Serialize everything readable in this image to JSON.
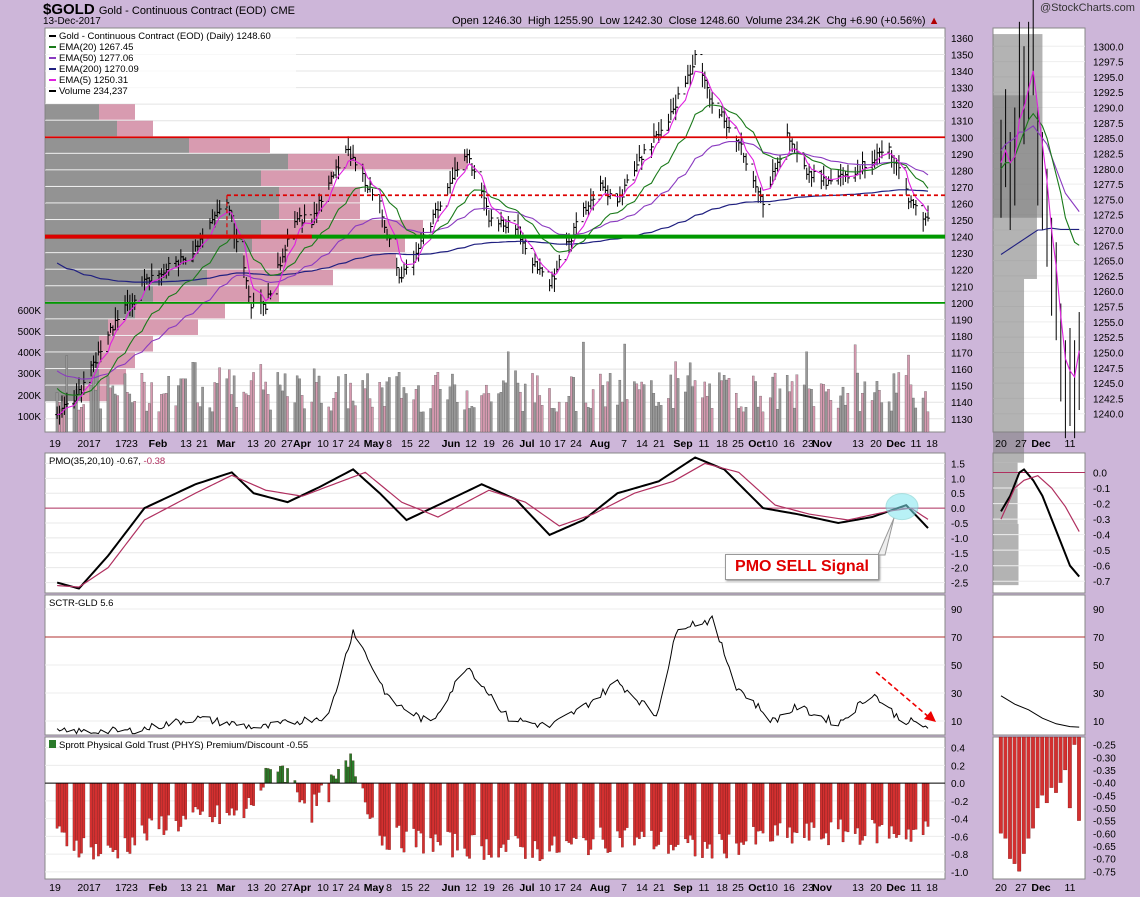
{
  "header": {
    "symbol": "$GOLD",
    "name": "Gold - Continuous Contract (EOD)",
    "exchange": "CME",
    "date": "13-Dec-2017",
    "open_label": "Open",
    "open": "1246.30",
    "high_label": "High",
    "high": "1255.90",
    "low_label": "Low",
    "low": "1242.30",
    "close_label": "Close",
    "close": "1248.60",
    "volume_label": "Volume",
    "volume": "234.2K",
    "chg_label": "Chg",
    "chg": "+6.90 (+0.56%)",
    "watermark": "@StockCharts.com"
  },
  "annotation": {
    "pmo_sell": "PMO SELL Signal"
  },
  "colors": {
    "ema20": "#1a7a1a",
    "ema50": "#8a3ac0",
    "ema200": "#202080",
    "ema5": "#e020e0",
    "resistance": "#dd0000",
    "support": "#009900",
    "pmo": "#000000",
    "pmo_signal": "#b03060",
    "premium_pos": "#2a7a2a",
    "premium_neg": "#d33030",
    "vbp_gray": "#808080",
    "vbp_pink": "#c7708e",
    "panel_bg": "#ffffff",
    "outer_bg": "#cdb6d9"
  },
  "chart_data": [
    {
      "type": "candlestick",
      "title": "Gold - Continuous Contract (EOD) (Daily) 1248.60",
      "legend": [
        "Gold - Continuous Contract (EOD) (Daily) 1248.60",
        "EMA(20) 1267.45",
        "EMA(50) 1277.06",
        "EMA(200) 1270.09",
        "EMA(5) 1250.31",
        "Volume 234,237"
      ],
      "legend_placement": "top-left",
      "ylim": [
        1122,
        1366
      ],
      "y_ticks": [
        1130,
        1140,
        1150,
        1160,
        1170,
        1180,
        1190,
        1200,
        1210,
        1220,
        1230,
        1240,
        1250,
        1260,
        1270,
        1280,
        1290,
        1300,
        1310,
        1320,
        1330,
        1340,
        1350,
        1360
      ],
      "volume_ticks": [
        "100K",
        "200K",
        "300K",
        "400K",
        "500K",
        "600K"
      ],
      "x_tick_labels": [
        "19",
        "2017",
        "17",
        "23",
        "Feb",
        "13",
        "21",
        "Mar",
        "13",
        "20",
        "27",
        "Apr",
        "10",
        "17",
        "24",
        "May",
        "8",
        "15",
        "22",
        "Jun",
        "12",
        "19",
        "26",
        "Jul",
        "10",
        "17",
        "24",
        "Aug",
        "7",
        "14",
        "21",
        "Sep",
        "11",
        "18",
        "25",
        "Oct",
        "10",
        "16",
        "23",
        "Nov",
        "13",
        "20",
        "Dec",
        "11",
        "18"
      ],
      "close_path": [
        [
          "2016-12-19",
          1134
        ],
        [
          "2016-12-28",
          1145
        ],
        [
          "2017-01-09",
          1182
        ],
        [
          "2017-01-24",
          1212
        ],
        [
          "2017-02-14",
          1232
        ],
        [
          "2017-02-27",
          1262
        ],
        [
          "2017-03-09",
          1200
        ],
        [
          "2017-03-15",
          1198
        ],
        [
          "2017-03-27",
          1252
        ],
        [
          "2017-04-03",
          1250
        ],
        [
          "2017-04-17",
          1292
        ],
        [
          "2017-04-24",
          1276
        ],
        [
          "2017-05-01",
          1260
        ],
        [
          "2017-05-09",
          1214
        ],
        [
          "2017-05-16",
          1228
        ],
        [
          "2017-05-23",
          1252
        ],
        [
          "2017-06-06",
          1292
        ],
        [
          "2017-06-15",
          1252
        ],
        [
          "2017-06-26",
          1246
        ],
        [
          "2017-07-03",
          1226
        ],
        [
          "2017-07-10",
          1210
        ],
        [
          "2017-07-17",
          1234
        ],
        [
          "2017-07-24",
          1256
        ],
        [
          "2017-07-31",
          1270
        ],
        [
          "2017-08-07",
          1260
        ],
        [
          "2017-08-14",
          1282
        ],
        [
          "2017-08-28",
          1310
        ],
        [
          "2017-09-08",
          1348
        ],
        [
          "2017-09-15",
          1322
        ],
        [
          "2017-09-25",
          1300
        ],
        [
          "2017-10-06",
          1262
        ],
        [
          "2017-10-16",
          1300
        ],
        [
          "2017-10-23",
          1280
        ],
        [
          "2017-11-01",
          1272
        ],
        [
          "2017-11-13",
          1280
        ],
        [
          "2017-11-27",
          1294
        ],
        [
          "2017-12-05",
          1264
        ],
        [
          "2017-12-13",
          1248.6
        ]
      ],
      "volume_by_price": [
        {
          "price": [
            1140,
            1150
          ],
          "gray": 0.04,
          "pink": 0.03
        },
        {
          "price": [
            1150,
            1160
          ],
          "gray": 0.06,
          "pink": 0.03
        },
        {
          "price": [
            1160,
            1170
          ],
          "gray": 0.06,
          "pink": 0.04
        },
        {
          "price": [
            1170,
            1180
          ],
          "gray": 0.06,
          "pink": 0.06
        },
        {
          "price": [
            1180,
            1190
          ],
          "gray": 0.07,
          "pink": 0.1
        },
        {
          "price": [
            1190,
            1200
          ],
          "gray": 0.1,
          "pink": 0.1
        },
        {
          "price": [
            1200,
            1210
          ],
          "gray": 0.12,
          "pink": 0.14
        },
        {
          "price": [
            1210,
            1220
          ],
          "gray": 0.18,
          "pink": 0.14
        },
        {
          "price": [
            1220,
            1230
          ],
          "gray": 0.22,
          "pink": 0.17
        },
        {
          "price": [
            1230,
            1240
          ],
          "gray": 0.23,
          "pink": 0.17
        },
        {
          "price": [
            1240,
            1250
          ],
          "gray": 0.24,
          "pink": 0.18
        },
        {
          "price": [
            1250,
            1260
          ],
          "gray": 0.26,
          "pink": 0.09
        },
        {
          "price": [
            1260,
            1270
          ],
          "gray": 0.26,
          "pink": 0.09
        },
        {
          "price": [
            1270,
            1280
          ],
          "gray": 0.24,
          "pink": 0.08
        },
        {
          "price": [
            1280,
            1290
          ],
          "gray": 0.27,
          "pink": 0.2
        },
        {
          "price": [
            1290,
            1300
          ],
          "gray": 0.16,
          "pink": 0.09
        },
        {
          "price": [
            1300,
            1310
          ],
          "gray": 0.08,
          "pink": 0.04
        },
        {
          "price": [
            1310,
            1320
          ],
          "gray": 0.06,
          "pink": 0.04
        }
      ],
      "horizontal_lines": [
        {
          "value": 1300,
          "style": "solid",
          "color": "red"
        },
        {
          "value": 1265,
          "style": "dashed",
          "color": "red"
        },
        {
          "value": 1240,
          "style": "solid-thick",
          "color": "green"
        },
        {
          "value": 1240,
          "style": "solid-thick",
          "color": "red",
          "end": "2017-04-03"
        },
        {
          "value": 1200,
          "style": "solid",
          "color": "green"
        }
      ]
    },
    {
      "type": "line",
      "title": "PMO(35,20,10) -0.67, -0.38",
      "ylim": [
        -2.85,
        1.85
      ],
      "y_ticks": [
        -2.5,
        -2.0,
        -1.5,
        -1.0,
        -0.5,
        0.0,
        0.5,
        1.0,
        1.5
      ],
      "zero_line": 0,
      "series": [
        {
          "name": "PMO",
          "color": "black",
          "points": [
            [
              "2016-12-19",
              -2.5
            ],
            [
              "2016-12-28",
              -2.7
            ],
            [
              "2017-01-09",
              -1.6
            ],
            [
              "2017-01-24",
              0.0
            ],
            [
              "2017-02-14",
              0.8
            ],
            [
              "2017-03-01",
              1.2
            ],
            [
              "2017-03-10",
              0.5
            ],
            [
              "2017-03-24",
              0.2
            ],
            [
              "2017-04-06",
              0.7
            ],
            [
              "2017-04-20",
              1.3
            ],
            [
              "2017-05-01",
              0.5
            ],
            [
              "2017-05-12",
              -0.4
            ],
            [
              "2017-05-25",
              0.1
            ],
            [
              "2017-06-12",
              0.8
            ],
            [
              "2017-06-26",
              0.3
            ],
            [
              "2017-07-10",
              -0.9
            ],
            [
              "2017-07-24",
              -0.4
            ],
            [
              "2017-08-07",
              0.5
            ],
            [
              "2017-08-24",
              0.9
            ],
            [
              "2017-09-08",
              1.7
            ],
            [
              "2017-09-20",
              1.3
            ],
            [
              "2017-10-06",
              0.0
            ],
            [
              "2017-10-20",
              -0.2
            ],
            [
              "2017-11-06",
              -0.5
            ],
            [
              "2017-11-20",
              -0.3
            ],
            [
              "2017-12-04",
              0.1
            ],
            [
              "2017-12-13",
              -0.67
            ]
          ]
        },
        {
          "name": "Signal",
          "color": "maroon",
          "points": [
            [
              "2016-12-19",
              -2.6
            ],
            [
              "2016-12-28",
              -2.65
            ],
            [
              "2017-01-09",
              -2.0
            ],
            [
              "2017-01-24",
              -0.4
            ],
            [
              "2017-02-14",
              0.5
            ],
            [
              "2017-03-01",
              1.1
            ],
            [
              "2017-03-15",
              0.6
            ],
            [
              "2017-03-30",
              0.4
            ],
            [
              "2017-04-12",
              0.8
            ],
            [
              "2017-04-25",
              1.2
            ],
            [
              "2017-05-10",
              0.2
            ],
            [
              "2017-05-25",
              -0.3
            ],
            [
              "2017-06-15",
              0.6
            ],
            [
              "2017-06-30",
              0.2
            ],
            [
              "2017-07-14",
              -0.6
            ],
            [
              "2017-07-28",
              -0.2
            ],
            [
              "2017-08-14",
              0.5
            ],
            [
              "2017-08-30",
              0.9
            ],
            [
              "2017-09-12",
              1.5
            ],
            [
              "2017-09-26",
              1.2
            ],
            [
              "2017-10-11",
              0.1
            ],
            [
              "2017-10-25",
              -0.2
            ],
            [
              "2017-11-10",
              -0.4
            ],
            [
              "2017-11-27",
              -0.1
            ],
            [
              "2017-12-06",
              0.0
            ],
            [
              "2017-12-13",
              -0.38
            ]
          ]
        }
      ],
      "annotation": "PMO SELL Signal"
    },
    {
      "type": "line",
      "title": "SCTR-GLD 5.6",
      "ylim": [
        0,
        100
      ],
      "y_ticks": [
        10,
        30,
        50,
        70,
        90
      ],
      "threshold": 70,
      "series": [
        {
          "name": "SCTR-GLD",
          "color": "black",
          "points": [
            [
              "2016-12-19",
              2
            ],
            [
              "2017-01-20",
              3
            ],
            [
              "2017-02-14",
              12
            ],
            [
              "2017-03-13",
              5
            ],
            [
              "2017-04-10",
              14
            ],
            [
              "2017-04-20",
              75
            ],
            [
              "2017-05-05",
              25
            ],
            [
              "2017-05-22",
              8
            ],
            [
              "2017-06-06",
              50
            ],
            [
              "2017-06-23",
              12
            ],
            [
              "2017-07-10",
              6
            ],
            [
              "2017-07-24",
              20
            ],
            [
              "2017-08-07",
              38
            ],
            [
              "2017-08-23",
              14
            ],
            [
              "2017-09-01",
              78
            ],
            [
              "2017-09-08",
              80
            ],
            [
              "2017-09-15",
              82
            ],
            [
              "2017-09-25",
              35
            ],
            [
              "2017-10-10",
              10
            ],
            [
              "2017-10-20",
              20
            ],
            [
              "2017-11-06",
              8
            ],
            [
              "2017-11-20",
              30
            ],
            [
              "2017-12-01",
              12
            ],
            [
              "2017-12-13",
              5.6
            ]
          ]
        }
      ]
    },
    {
      "type": "bar",
      "title": "Sprott Physical Gold Trust (PHYS) Premium/Discount -0.55",
      "ylim": [
        -1.08,
        0.52
      ],
      "y_ticks": [
        -1.0,
        -0.8,
        -0.6,
        -0.4,
        -0.2,
        0.0,
        0.2,
        0.4
      ],
      "profile": [
        [
          "2016-12-19",
          -0.6
        ],
        [
          "2017-01-09",
          -0.8
        ],
        [
          "2017-02-01",
          -0.45
        ],
        [
          "2017-03-06",
          -0.35
        ],
        [
          "2017-03-20",
          0.25
        ],
        [
          "2017-04-03",
          -0.3
        ],
        [
          "2017-04-20",
          0.25
        ],
        [
          "2017-05-01",
          -0.6
        ],
        [
          "2017-06-01",
          -0.7
        ],
        [
          "2017-07-10",
          -0.75
        ],
        [
          "2017-08-10",
          -0.6
        ],
        [
          "2017-09-11",
          -0.75
        ],
        [
          "2017-10-10",
          -0.6
        ],
        [
          "2017-11-13",
          -0.55
        ],
        [
          "2017-12-13",
          -0.55
        ]
      ]
    }
  ],
  "zoom_panels": {
    "price_ticks": [
      1240,
      1242.5,
      1245,
      1247.5,
      1250,
      1252.5,
      1255,
      1257.5,
      1260,
      1262.5,
      1265,
      1267.5,
      1270,
      1272.5,
      1275,
      1277.5,
      1280,
      1282.5,
      1285,
      1287.5,
      1290,
      1292.5,
      1295,
      1297.5,
      1300
    ],
    "pmo_ticks": [
      0.0,
      -0.1,
      -0.2,
      -0.3,
      -0.4,
      -0.5,
      -0.6,
      -0.7
    ],
    "sctr_ticks": [
      10,
      30,
      50,
      70,
      90
    ],
    "premium_ticks": [
      -0.25,
      -0.3,
      -0.35,
      -0.4,
      -0.45,
      -0.5,
      -0.55,
      -0.6,
      -0.65,
      -0.7,
      -0.75
    ],
    "x_tick_labels": [
      "20",
      "27",
      "Dec",
      "11"
    ]
  }
}
